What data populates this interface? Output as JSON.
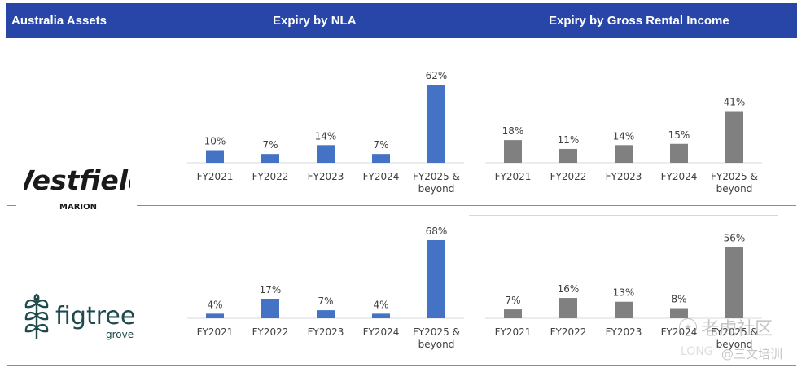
{
  "header": {
    "col1": "Australia Assets",
    "col2": "Expiry by NLA",
    "col3": "Expiry by Gross Rental Income",
    "background": "#2845a8"
  },
  "assets": [
    {
      "logo_icon": "westfield-logo",
      "logo_main": "Westfield",
      "logo_sub": "MARION"
    },
    {
      "logo_icon": "figtree-grove-logo",
      "logo_main": "figtree",
      "logo_sub": "grove",
      "color": "#1f4a4e"
    }
  ],
  "watermark": {
    "icon": "paw-icon",
    "line1": "老虎社区",
    "line2": "@三文培训",
    "faint": "LONG"
  },
  "chart_data": [
    {
      "type": "bar",
      "id": "westfield-nla",
      "title": "Expiry by NLA",
      "color": "#4472c4",
      "categories": [
        "FY2021",
        "FY2022",
        "FY2023",
        "FY2024",
        "FY2025 & beyond"
      ],
      "values": [
        10,
        7,
        14,
        7,
        62
      ],
      "labels": [
        "10%",
        "7%",
        "14%",
        "7%",
        "62%"
      ],
      "ylim": [
        0,
        62
      ]
    },
    {
      "type": "bar",
      "id": "westfield-gri",
      "title": "Expiry by Gross Rental Income",
      "color": "#808080",
      "categories": [
        "FY2021",
        "FY2022",
        "FY2023",
        "FY2024",
        "FY2025 & beyond"
      ],
      "values": [
        18,
        11,
        14,
        15,
        41
      ],
      "labels": [
        "18%",
        "11%",
        "14%",
        "15%",
        "41%"
      ],
      "ylim": [
        0,
        62
      ]
    },
    {
      "type": "bar",
      "id": "figtree-nla",
      "title": "Expiry by NLA",
      "color": "#4472c4",
      "categories": [
        "FY2021",
        "FY2022",
        "FY2023",
        "FY2024",
        "FY2025 & beyond"
      ],
      "values": [
        4,
        17,
        7,
        4,
        68
      ],
      "labels": [
        "4%",
        "17%",
        "7%",
        "4%",
        "68%"
      ],
      "ylim": [
        0,
        68
      ]
    },
    {
      "type": "bar",
      "id": "figtree-gri",
      "title": "Expiry by Gross Rental Income",
      "color": "#808080",
      "categories": [
        "FY2021",
        "FY2022",
        "FY2023",
        "FY2024",
        "FY2025 & beyond"
      ],
      "values": [
        7,
        16,
        13,
        8,
        56
      ],
      "labels": [
        "7%",
        "16%",
        "13%",
        "8%",
        "56%"
      ],
      "ylim": [
        0,
        68
      ]
    }
  ]
}
